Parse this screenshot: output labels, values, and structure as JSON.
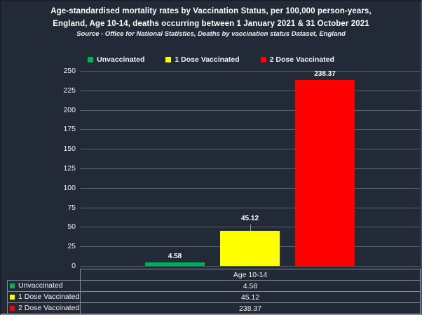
{
  "header": {
    "title_line1": "Age-standardised mortality rates by Vaccination Status, per 100,000 person-years,",
    "title_line2": "England, Age 10-14, deaths occurring between 1 January 2021 & 31 October 2021",
    "source": "Source - Office for National Statistics, Deaths by vaccination status Dataset, England"
  },
  "colors": {
    "background": "#232A37",
    "gridline": "#59616D",
    "table_border": "#828A95",
    "text": "#FFFFFF",
    "unvaccinated": "#00B050",
    "one_dose": "#FFFF00",
    "two_dose": "#FF0000"
  },
  "legend": {
    "items": [
      {
        "label": "Unvaccinated",
        "color": "#00B050"
      },
      {
        "label": "1 Dose Vaccinated",
        "color": "#FFFF00"
      },
      {
        "label": "2 Dose Vaccinated",
        "color": "#FF0000"
      }
    ]
  },
  "chart_data": {
    "type": "bar",
    "title": "Age-standardised mortality rates by Vaccination Status, per 100,000 person-years, England, Age 10-14, deaths occurring between 1 January 2021 & 31 October 2021",
    "subtitle": "Source - Office for National Statistics, Deaths by vaccination status Dataset, England",
    "categories": [
      "Age 10-14"
    ],
    "series": [
      {
        "name": "Unvaccinated",
        "color": "#00B050",
        "values": [
          4.58
        ],
        "data_labels": [
          "4.58"
        ]
      },
      {
        "name": "1 Dose Vaccinated",
        "color": "#FFFF00",
        "values": [
          45.12
        ],
        "data_labels": [
          "45.12"
        ]
      },
      {
        "name": "2 Dose Vaccinated",
        "color": "#FF0000",
        "values": [
          238.37
        ],
        "data_labels": [
          "238.37"
        ]
      }
    ],
    "xlabel": "",
    "ylabel": "",
    "ylim": [
      0,
      250
    ],
    "yticks": [
      0,
      25,
      50,
      75,
      100,
      125,
      150,
      175,
      200,
      225,
      250
    ],
    "grid": true,
    "legend_position": "top",
    "has_data_table": true
  },
  "data_table": {
    "category_header": "Age 10-14",
    "rows": [
      {
        "label": "Unvaccinated",
        "value": "4.58",
        "color": "#00B050"
      },
      {
        "label": "1 Dose Vaccinated",
        "value": "45.12",
        "color": "#FFFF00"
      },
      {
        "label": "2 Dose Vaccinated",
        "value": "238.37",
        "color": "#FF0000"
      }
    ]
  }
}
